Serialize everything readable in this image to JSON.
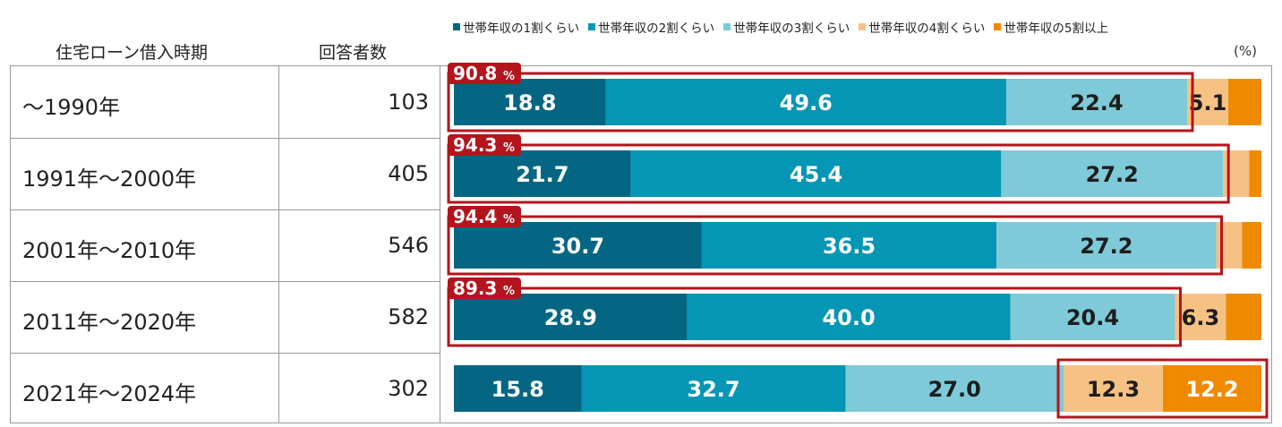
{
  "header": {
    "period_label": "住宅ローン借入時期",
    "count_label": "回答者数",
    "unit": "(%)"
  },
  "legend": [
    {
      "label": "世帯年収の1割くらい",
      "color": "#046682"
    },
    {
      "label": "世帯年収の2割くらい",
      "color": "#0496b4"
    },
    {
      "label": "世帯年収の3割くらい",
      "color": "#7ecad8"
    },
    {
      "label": "世帯年収の4割くらい",
      "color": "#f6c283"
    },
    {
      "label": "世帯年収の5割以上",
      "color": "#ef8a00"
    }
  ],
  "rows": [
    {
      "period": "～1990年",
      "count": "103"
    },
    {
      "period": "1991年～2000年",
      "count": "405"
    },
    {
      "period": "2001年～2010年",
      "count": "546"
    },
    {
      "period": "2011年～2020年",
      "count": "582"
    },
    {
      "period": "2021年～2024年",
      "count": "302"
    }
  ],
  "chart_data": {
    "type": "bar",
    "orientation": "horizontal",
    "stacked": true,
    "unit": "(%)",
    "categories": [
      "～1990年",
      "1991年～2000年",
      "2001年～2010年",
      "2011年～2020年",
      "2021年～2024年"
    ],
    "series": [
      {
        "name": "世帯年収の1割くらい",
        "values": [
          18.8,
          21.7,
          30.7,
          28.9,
          15.8
        ],
        "labels": [
          "18.8",
          "21.7",
          "30.7",
          "28.9",
          "15.8"
        ]
      },
      {
        "name": "世帯年収の2割くらい",
        "values": [
          49.6,
          45.4,
          36.5,
          40.0,
          32.7
        ],
        "labels": [
          "49.6",
          "45.4",
          "36.5",
          "40.0",
          "32.7"
        ]
      },
      {
        "name": "世帯年収の3割くらい",
        "values": [
          22.4,
          27.2,
          27.2,
          20.4,
          27.0
        ],
        "labels": [
          "22.4",
          "27.2",
          "27.2",
          "20.4",
          "27.0"
        ]
      },
      {
        "name": "世帯年収の4割くらい",
        "values": [
          5.1,
          3.2,
          3.2,
          6.3,
          12.3
        ],
        "labels": [
          "5.1",
          "",
          "",
          "6.3",
          "12.3"
        ]
      },
      {
        "name": "世帯年収の5割以上",
        "values": [
          4.1,
          1.5,
          2.4,
          4.4,
          12.2
        ],
        "labels": [
          "",
          "",
          "",
          "",
          "12.2"
        ]
      }
    ],
    "highlights": [
      {
        "row": 0,
        "from_series": 0,
        "to_series": 2,
        "total": "90.8",
        "unit": "%"
      },
      {
        "row": 1,
        "from_series": 0,
        "to_series": 2,
        "total": "94.3",
        "unit": "%"
      },
      {
        "row": 2,
        "from_series": 0,
        "to_series": 2,
        "total": "94.4",
        "unit": "%"
      },
      {
        "row": 3,
        "from_series": 0,
        "to_series": 2,
        "total": "89.3",
        "unit": "%"
      },
      {
        "row": 4,
        "from_series": 3,
        "to_series": 4,
        "total": "",
        "unit": ""
      }
    ],
    "xlim": [
      0,
      100
    ],
    "grid": false,
    "legend_position": "top",
    "label_colors": [
      "#ffffff",
      "#ffffff",
      "#1d1d1d",
      "#1d1d1d",
      "#ffffff"
    ],
    "highlight_color": "#b4141b"
  }
}
